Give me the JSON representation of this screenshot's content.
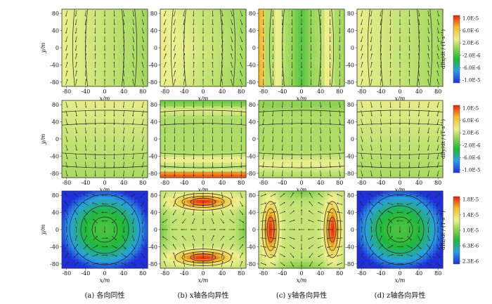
{
  "figure": {
    "captions": [
      "(a) 各向同性",
      "(b) x轴各向异性",
      "(c) y轴各向异性",
      "(d) z轴各向异性"
    ],
    "x_label": "x/m",
    "y_label": "y/m",
    "tick_values": [
      -80,
      -40,
      0,
      40,
      80
    ],
    "row_quantities": [
      "dBx/dt",
      "dBy/dt",
      "dBz/dt"
    ],
    "unit": "(T·s⁻¹)",
    "colorbars": [
      {
        "labels": [
          "1.0E-5",
          "6.0E-6",
          "2.0E-6",
          "-2.0E-6",
          "-6.0E-6",
          "-1.0E-5"
        ]
      },
      {
        "labels": [
          "1.0E-5",
          "6.0E-6",
          "2.0E-6",
          "-2.0E-6",
          "-6.0E-6",
          "-1.0E-5"
        ]
      },
      {
        "labels": [
          "1.8E-5",
          "1.4E-5",
          "1.0E-5",
          "6.3E-6",
          "2.3E-6"
        ]
      }
    ],
    "colormap": [
      "#2030d8",
      "#2aa0e0",
      "#22b838",
      "#88d050",
      "#eef090",
      "#f0c030",
      "#e82010"
    ]
  },
  "chart_data": {
    "type": "heatmap",
    "grid": "3 rows x 4 columns of 2D field maps with vector arrows and contour lines",
    "x_range": [
      -90,
      90
    ],
    "y_range": [
      -90,
      90
    ],
    "rows": [
      {
        "quantity": "dBx/dt",
        "range": [
          -1e-05,
          1e-05
        ],
        "panels": [
          {
            "caption": "(a)",
            "pattern": "mostly yellow-green, weak variation, slightly greener at right"
          },
          {
            "caption": "(b)",
            "pattern": "yellow near left edge, green band on right near x≈60"
          },
          {
            "caption": "(c)",
            "pattern": "red column at x≈-80, yellow columns, green between"
          },
          {
            "caption": "(d)",
            "pattern": "similar to (a), mostly yellow-green"
          }
        ]
      },
      {
        "quantity": "dBy/dt",
        "range": [
          -1e-05,
          1e-05
        ],
        "panels": [
          {
            "caption": "(a)",
            "pattern": "mostly yellow-green, weak variation"
          },
          {
            "caption": "(b)",
            "pattern": "red band at y≈-85, yellow bands, green band at top"
          },
          {
            "caption": "(c)",
            "pattern": "green top band, yellow lower bands"
          },
          {
            "caption": "(d)",
            "pattern": "similar to (a)"
          }
        ]
      },
      {
        "quantity": "dBz/dt",
        "range": [
          2.3e-06,
          1.8e-05
        ],
        "panels": [
          {
            "caption": "(a)",
            "pattern": "circular: green center, blue corners"
          },
          {
            "caption": "(b)",
            "pattern": "red ellipses at y≈±65, yellow background, green at x edges"
          },
          {
            "caption": "(c)",
            "pattern": "red ellipses at x≈±65, yellow background, green at y edges"
          },
          {
            "caption": "(d)",
            "pattern": "circular: green center, blue corners"
          }
        ]
      }
    ]
  }
}
